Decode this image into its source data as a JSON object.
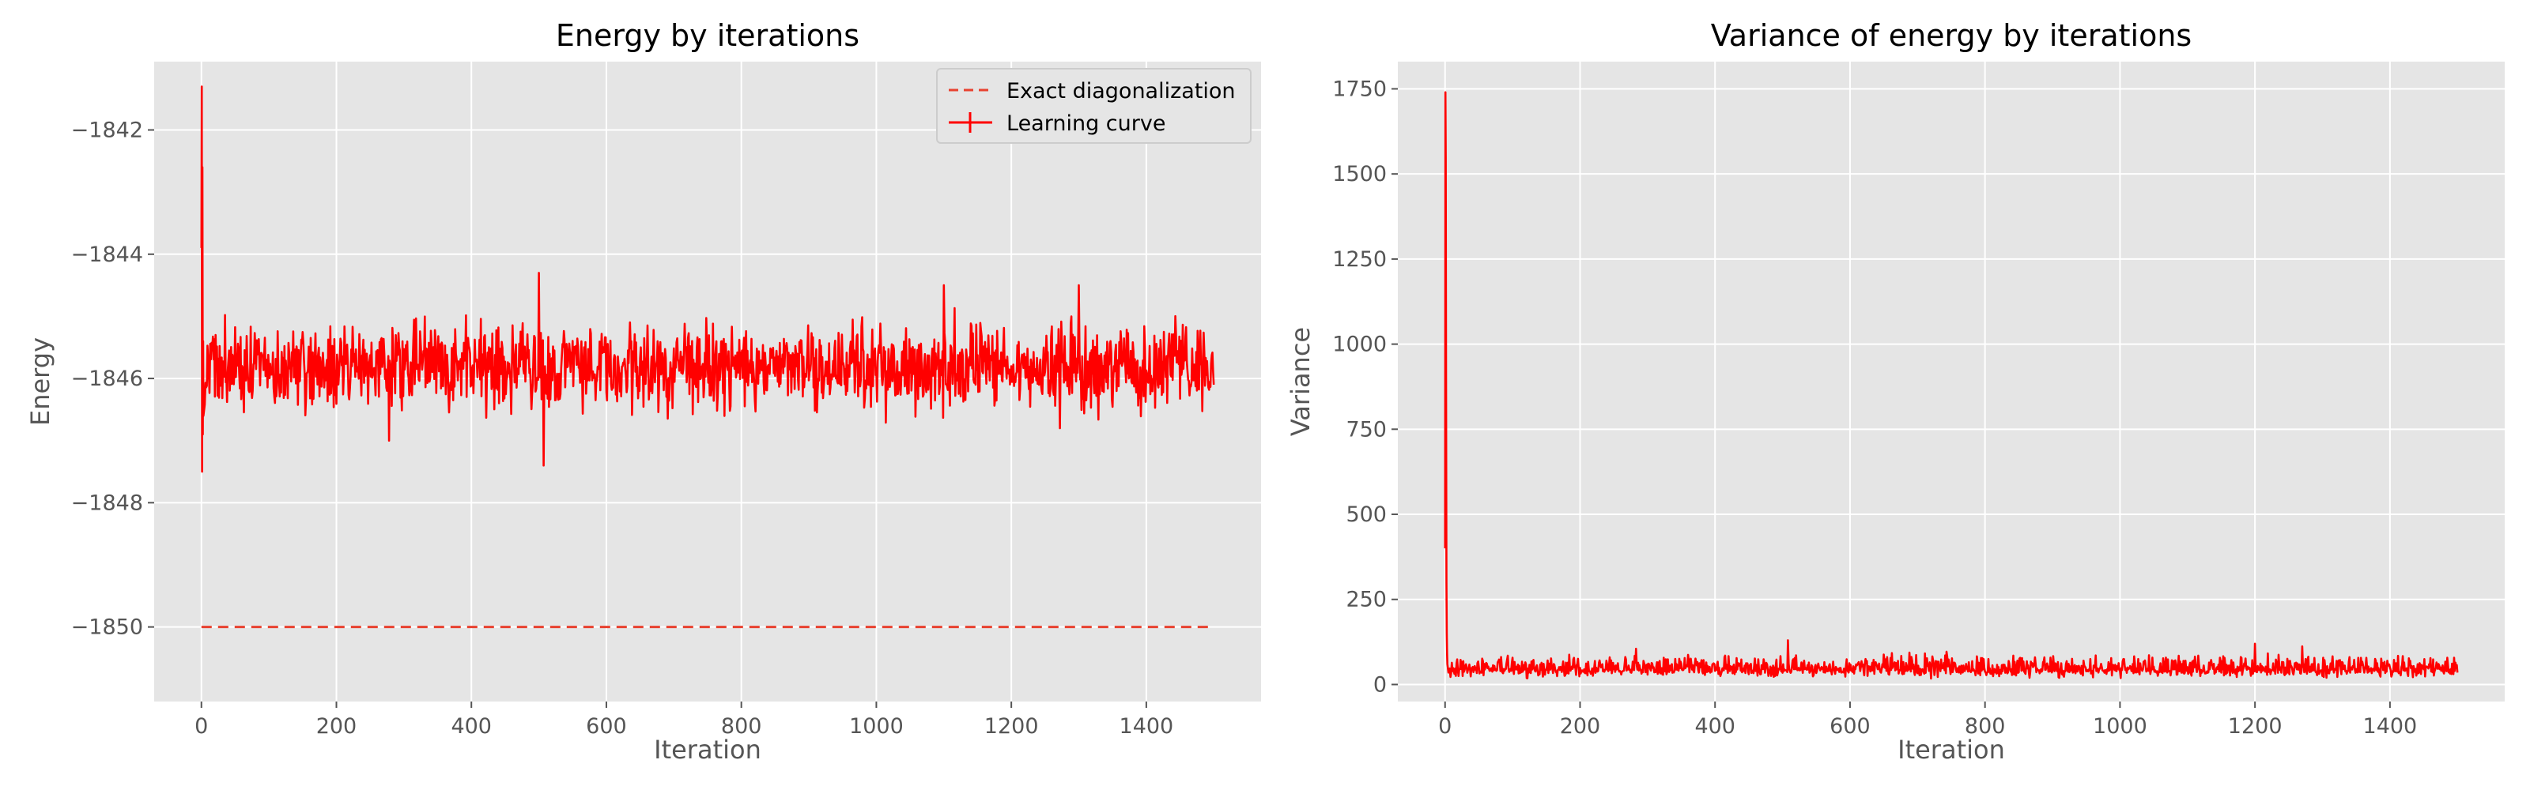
{
  "chart_data": [
    {
      "type": "line",
      "title": "Energy by iterations",
      "xlabel": "Iteration",
      "ylabel": "Energy",
      "xlim": [
        -70,
        1570
      ],
      "ylim": [
        -1851.2,
        -1840.9
      ],
      "xticks": [
        0,
        200,
        400,
        600,
        800,
        1000,
        1200,
        1400
      ],
      "yticks": [
        -1850,
        -1848,
        -1846,
        -1844,
        -1842
      ],
      "grid": true,
      "legend": "top-right",
      "series": [
        {
          "name": "Exact diagonalization",
          "style": "dashed",
          "color": "#e8412f",
          "x": [
            0,
            1500
          ],
          "y": [
            -1850,
            -1850
          ]
        },
        {
          "name": "Learning curve",
          "style": "solid",
          "color": "#ff0000",
          "n_iterations": 1500,
          "initial": [
            -1843.9,
            -1841.3,
            -1847.5,
            -1842.6,
            -1846.9,
            -1845.4,
            -1846.6
          ],
          "mean": -1845.8,
          "band": [
            -1846.8,
            -1844.8
          ],
          "extremes": [
            {
              "x": 278,
              "y": -1847.0
            },
            {
              "x": 500,
              "y": -1844.3
            },
            {
              "x": 507,
              "y": -1847.4
            },
            {
              "x": 1100,
              "y": -1844.5
            },
            {
              "x": 1272,
              "y": -1846.8
            },
            {
              "x": 1300,
              "y": -1844.5
            }
          ],
          "end": -1846.1
        }
      ]
    },
    {
      "type": "line",
      "title": "Variance of energy by iterations",
      "xlabel": "Iteration",
      "ylabel": "Variance",
      "xlim": [
        -70,
        1570
      ],
      "ylim": [
        -50,
        1830
      ],
      "xticks": [
        0,
        200,
        400,
        600,
        800,
        1000,
        1200,
        1400
      ],
      "yticks": [
        0,
        250,
        500,
        750,
        1000,
        1250,
        1500,
        1750
      ],
      "grid": true,
      "series": [
        {
          "style": "solid",
          "color": "#ff0000",
          "n_iterations": 1500,
          "initial": [
            400,
            1740,
            1550,
            900,
            300,
            150,
            90,
            60
          ],
          "mean": 45,
          "band": [
            15,
            100
          ],
          "extremes": [
            {
              "x": 283,
              "y": 105
            },
            {
              "x": 508,
              "y": 130
            },
            {
              "x": 1200,
              "y": 120
            },
            {
              "x": 1270,
              "y": 112
            }
          ],
          "end": 35
        }
      ]
    }
  ]
}
